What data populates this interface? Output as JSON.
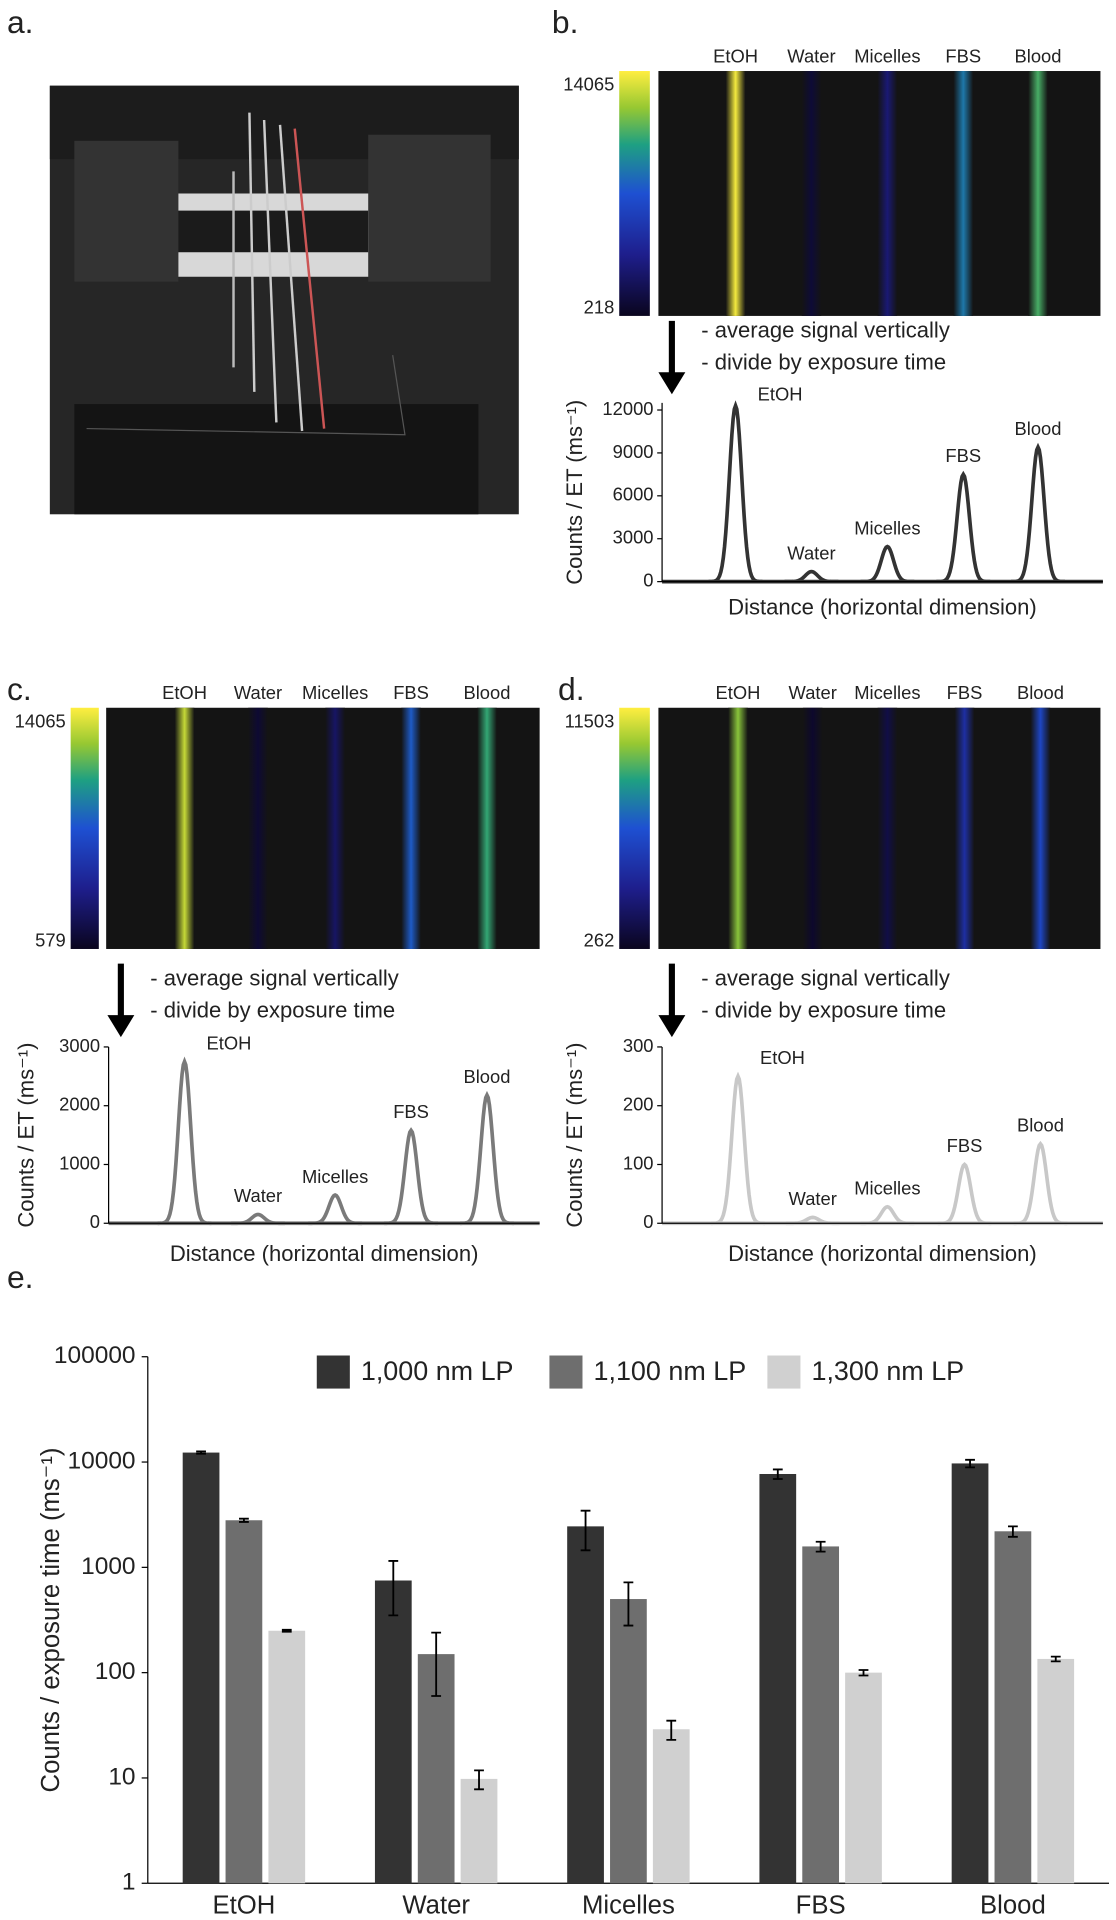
{
  "photo": {
    "panel": "a."
  },
  "chart_data": [
    {
      "type": "line",
      "panel": "b.",
      "categories": [
        "EtOH",
        "Water",
        "Micelles",
        "FBS",
        "Blood"
      ],
      "values": [
        12300,
        700,
        2450,
        7500,
        9400
      ],
      "color": "#333333",
      "ylim": [
        0,
        12500
      ],
      "yticks": [
        0,
        3000,
        6000,
        9000,
        12000
      ],
      "ylabel": "Counts / ET (ms⁻¹)",
      "xlabel": "Distance (horizontal dimension)",
      "colorbar_max": 14065,
      "colorbar_min": 218,
      "notes": [
        "- average signal vertically",
        "- divide by exposure time"
      ]
    },
    {
      "type": "line",
      "panel": "c.",
      "categories": [
        "EtOH",
        "Water",
        "Micelles",
        "FBS",
        "Blood"
      ],
      "values": [
        2750,
        150,
        480,
        1580,
        2180
      ],
      "color": "#7a7a7a",
      "ylim": [
        0,
        3000
      ],
      "yticks": [
        0,
        1000,
        2000,
        3000
      ],
      "ylabel": "Counts / ET (ms⁻¹)",
      "xlabel": "Distance (horizontal dimension)",
      "colorbar_max": 14065,
      "colorbar_min": 579,
      "notes": [
        "- average signal vertically",
        "- divide by exposure time"
      ]
    },
    {
      "type": "line",
      "panel": "d.",
      "categories": [
        "EtOH",
        "Water",
        "Micelles",
        "FBS",
        "Blood"
      ],
      "values": [
        250,
        10,
        28,
        100,
        135
      ],
      "color": "#c8c8c8",
      "ylim": [
        0,
        300
      ],
      "yticks": [
        0,
        100,
        200,
        300
      ],
      "ylabel": "Counts / ET (ms⁻¹)",
      "xlabel": "Distance (horizontal dimension)",
      "colorbar_max": 11503,
      "colorbar_min": 262,
      "notes": [
        "- average signal vertically",
        "- divide by exposure time"
      ]
    },
    {
      "type": "bar",
      "panel": "e.",
      "categories": [
        "EtOH",
        "Water",
        "Micelles",
        "FBS",
        "Blood"
      ],
      "series": [
        {
          "name": "1,000 nm LP",
          "color": "#333333",
          "values": [
            12300,
            750,
            2450,
            7700,
            9700
          ],
          "errors": [
            300,
            400,
            1000,
            800,
            800
          ]
        },
        {
          "name": "1,100 nm LP",
          "color": "#6e6e6e",
          "values": [
            2800,
            150,
            500,
            1580,
            2200
          ],
          "errors": [
            100,
            90,
            220,
            170,
            250
          ]
        },
        {
          "name": "1,300 nm LP",
          "color": "#d0d0d0",
          "values": [
            250,
            9.8,
            29,
            100,
            135
          ],
          "errors": [
            5,
            2,
            6,
            6,
            7
          ]
        }
      ],
      "ylim": [
        1,
        100000
      ],
      "yticks": [
        1,
        10,
        100,
        1000,
        10000,
        100000
      ],
      "log_scale": true,
      "ylabel": "Counts / exposure time (ms⁻¹)",
      "legend": "top"
    }
  ]
}
